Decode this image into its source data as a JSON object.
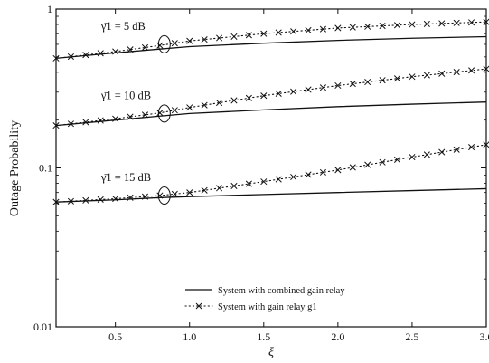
{
  "chart_data": {
    "type": "line",
    "xlabel": "ξ",
    "ylabel": "Outage Probability",
    "xlim": [
      0.1,
      3.0
    ],
    "ylim": [
      0.01,
      1
    ],
    "yscale": "log",
    "grid": false,
    "legend_position": "bottom-center",
    "x_ticks": [
      {
        "value": 0.5,
        "label": "0.5"
      },
      {
        "value": 1.0,
        "label": "1.0"
      },
      {
        "value": 1.5,
        "label": "1.5"
      },
      {
        "value": 2.0,
        "label": "2.0"
      },
      {
        "value": 2.5,
        "label": "2.5"
      },
      {
        "value": 3.0,
        "label": "3.0"
      }
    ],
    "y_ticks": [
      {
        "value": 0.01,
        "label": "0.01"
      },
      {
        "value": 0.1,
        "label": "0.1"
      },
      {
        "value": 1,
        "label": "1"
      }
    ],
    "x": [
      0.1,
      0.5,
      0.8,
      1.0,
      1.5,
      2.0,
      2.5,
      3.0
    ],
    "series": [
      {
        "name": "System with combined gain relay",
        "group": "γ̄1 = 5 dB",
        "style": "solid",
        "values": [
          0.49,
          0.53,
          0.56,
          0.58,
          0.61,
          0.635,
          0.655,
          0.67
        ]
      },
      {
        "name": "System with gain relay g1",
        "group": "γ̄1 = 5 dB",
        "style": "dotted-x",
        "values": [
          0.49,
          0.54,
          0.59,
          0.63,
          0.7,
          0.76,
          0.8,
          0.83
        ]
      },
      {
        "name": "System with combined gain relay",
        "group": "γ̄1 = 10 dB",
        "style": "solid",
        "values": [
          0.185,
          0.2,
          0.212,
          0.22,
          0.232,
          0.243,
          0.252,
          0.26
        ]
      },
      {
        "name": "System with gain relay g1",
        "group": "γ̄1 = 10 dB",
        "style": "dotted-x",
        "values": [
          0.185,
          0.204,
          0.222,
          0.24,
          0.285,
          0.33,
          0.375,
          0.42
        ]
      },
      {
        "name": "System with combined gain relay",
        "group": "γ̄1 = 15 dB",
        "style": "solid",
        "values": [
          0.061,
          0.063,
          0.065,
          0.066,
          0.068,
          0.07,
          0.072,
          0.074
        ]
      },
      {
        "name": "System with gain relay g1",
        "group": "γ̄1 = 15 dB",
        "style": "dotted-x",
        "values": [
          0.061,
          0.064,
          0.067,
          0.07,
          0.082,
          0.097,
          0.117,
          0.14
        ]
      }
    ],
    "annotations": [
      {
        "label": "γ̄1 = 5 dB",
        "x": 0.83,
        "y": 0.6
      },
      {
        "label": "γ̄1 = 10 dB",
        "x": 0.83,
        "y": 0.22
      },
      {
        "label": "γ̄1 = 15 dB",
        "x": 0.83,
        "y": 0.067
      }
    ],
    "legend": [
      {
        "label": "System with combined gain relay",
        "style": "solid"
      },
      {
        "label": "System with gain relay g1",
        "style": "dotted-x"
      }
    ]
  }
}
